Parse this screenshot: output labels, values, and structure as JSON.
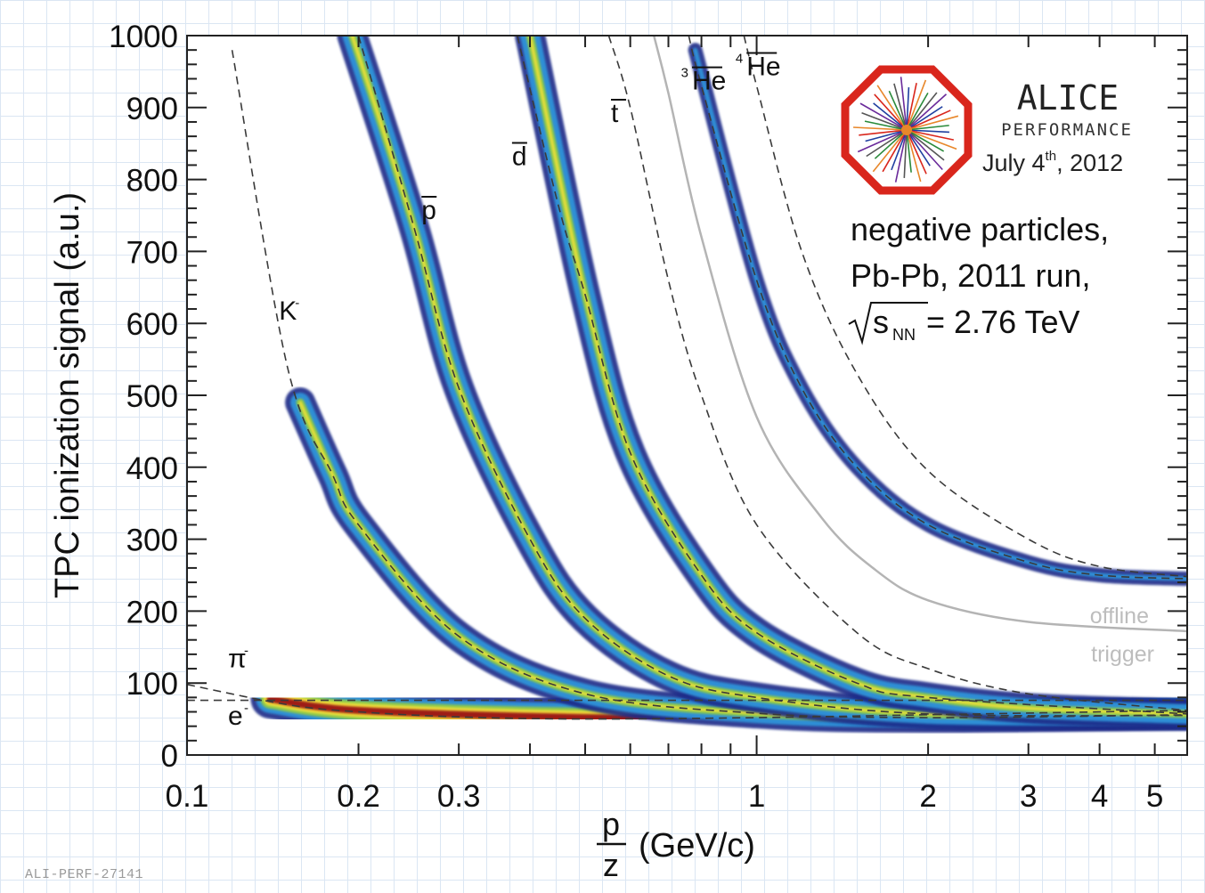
{
  "chart_data": {
    "type": "scatter",
    "x_scale": "log",
    "x_range": [
      0.1,
      5.7
    ],
    "y_range": [
      0,
      1000
    ],
    "x_ticks": [
      0.1,
      0.2,
      0.3,
      1,
      2,
      3,
      4,
      5
    ],
    "y_ticks": [
      0,
      100,
      200,
      300,
      400,
      500,
      600,
      700,
      800,
      900,
      1000
    ],
    "ylabel": "TPC ionization signal (a.u.)",
    "xlabel": {
      "numerator": "p",
      "denominator": "z",
      "unit": "(GeV/c)"
    },
    "grid": false,
    "series": [
      {
        "name": "e⁻",
        "x": [
          0.1,
          0.2,
          0.5,
          1,
          2,
          5.7
        ],
        "y": [
          76,
          76,
          76,
          76,
          76,
          76
        ]
      },
      {
        "name": "π⁻",
        "x": [
          0.1,
          0.15,
          0.2,
          0.3,
          0.5,
          1,
          2,
          5.7
        ],
        "y": [
          98,
          70,
          60,
          53,
          50,
          52,
          56,
          62
        ]
      },
      {
        "name": "K⁻",
        "x": [
          0.12,
          0.15,
          0.18,
          0.2,
          0.3,
          0.5,
          1,
          2,
          5.7
        ],
        "y": [
          980,
          540,
          390,
          320,
          165,
          85,
          58,
          52,
          56
        ]
      },
      {
        "name": "p̄",
        "x": [
          0.2,
          0.25,
          0.3,
          0.4,
          0.5,
          0.7,
          1,
          2,
          5.7
        ],
        "y": [
          1000,
          735,
          510,
          300,
          190,
          110,
          80,
          57,
          55
        ]
      },
      {
        "name": "d̄",
        "x": [
          0.38,
          0.45,
          0.5,
          0.6,
          0.8,
          1,
          1.5,
          2,
          5.7
        ],
        "y": [
          1000,
          760,
          640,
          420,
          250,
          170,
          100,
          80,
          57
        ]
      },
      {
        "name": "t̄",
        "x": [
          0.55,
          0.6,
          0.7,
          0.8,
          1,
          1.5,
          2,
          3,
          5.7
        ],
        "y": [
          1000,
          900,
          660,
          500,
          320,
          170,
          120,
          85,
          62
        ]
      },
      {
        "name": "³He̅",
        "x": [
          0.76,
          0.8,
          1,
          1.2,
          1.5,
          2,
          3,
          4,
          5.7
        ],
        "y": [
          1000,
          930,
          660,
          510,
          400,
          320,
          268,
          250,
          245
        ]
      },
      {
        "name": "⁴He̅",
        "x": [
          0.95,
          1,
          1.2,
          1.5,
          2,
          3,
          4,
          5.7
        ],
        "y": [
          1000,
          930,
          700,
          530,
          395,
          300,
          262,
          248
        ]
      },
      {
        "name": "offline trigger",
        "x": [
          0.66,
          0.7,
          0.8,
          1,
          1.3,
          1.6,
          2,
          3,
          5.7
        ],
        "y": [
          1000,
          920,
          720,
          470,
          330,
          260,
          215,
          185,
          172
        ]
      }
    ],
    "bands": [
      {
        "name": "e⁻ / π⁻",
        "x": [
          0.14,
          0.2,
          0.5,
          1,
          2,
          5.7
        ],
        "y": [
          78,
          62,
          52,
          52,
          56,
          60
        ]
      },
      {
        "name": "K⁻",
        "x": [
          0.158,
          0.18,
          0.2,
          0.3,
          0.5,
          1,
          2,
          5.7
        ],
        "y": [
          490,
          390,
          320,
          165,
          85,
          58,
          52,
          56
        ]
      },
      {
        "name": "p̄",
        "x": [
          0.195,
          0.25,
          0.3,
          0.4,
          0.5,
          0.7,
          1,
          2,
          5.7
        ],
        "y": [
          1000,
          735,
          510,
          300,
          190,
          110,
          80,
          57,
          55
        ]
      },
      {
        "name": "d̄",
        "x": [
          0.4,
          0.5,
          0.6,
          0.8,
          1,
          1.5,
          2,
          3,
          5.7
        ],
        "y": [
          1000,
          640,
          420,
          250,
          170,
          100,
          80,
          65,
          57
        ]
      },
      {
        "name": "³He̅",
        "x": [
          0.78,
          1,
          1.2,
          1.5,
          2,
          3,
          4,
          5.7
        ],
        "y": [
          980,
          660,
          510,
          400,
          320,
          268,
          250,
          245
        ]
      }
    ],
    "particle_labels": [
      {
        "text": "K",
        "sup": "-",
        "x": 0.145,
        "y": 605
      },
      {
        "text": "p",
        "overline": true,
        "x": 0.258,
        "y": 745
      },
      {
        "text": "d",
        "overline": true,
        "x": 0.372,
        "y": 820
      },
      {
        "text": "t",
        "overline": true,
        "x": 0.555,
        "y": 880
      },
      {
        "text": "He",
        "pre_sup": "3",
        "overline": true,
        "x": 0.77,
        "y": 925
      },
      {
        "text": "He",
        "pre_sup": "4",
        "overline": true,
        "x": 0.96,
        "y": 945
      },
      {
        "text": "π",
        "sup": "-",
        "x": 0.118,
        "y": 122
      },
      {
        "text": "e",
        "sup": "-",
        "x": 0.118,
        "y": 42
      }
    ],
    "trigger_labels": [
      "offline",
      "trigger"
    ],
    "colors": {
      "band_outer": "#1a2c88",
      "band_mid": "#2e8fd6",
      "band_green": "#8cc84a",
      "band_yellow": "#f2e03a",
      "band_red": "#9e1a14",
      "dashed": "#3a3a3a",
      "trigger": "#b4b4b4"
    }
  },
  "logo": {
    "title": "ALICE",
    "subtitle": "PERFORMANCE",
    "date_day": "July 4",
    "date_sup": "th",
    "date_year": ", 2012",
    "border_color": "#d9261c"
  },
  "info": {
    "line1": "negative particles,",
    "line2": "Pb-Pb, 2011 run,",
    "sqrt_label": "s",
    "sqrt_sub": "NN",
    "energy": " = 2.76 TeV"
  },
  "footer": "ALI-PERF-27141"
}
